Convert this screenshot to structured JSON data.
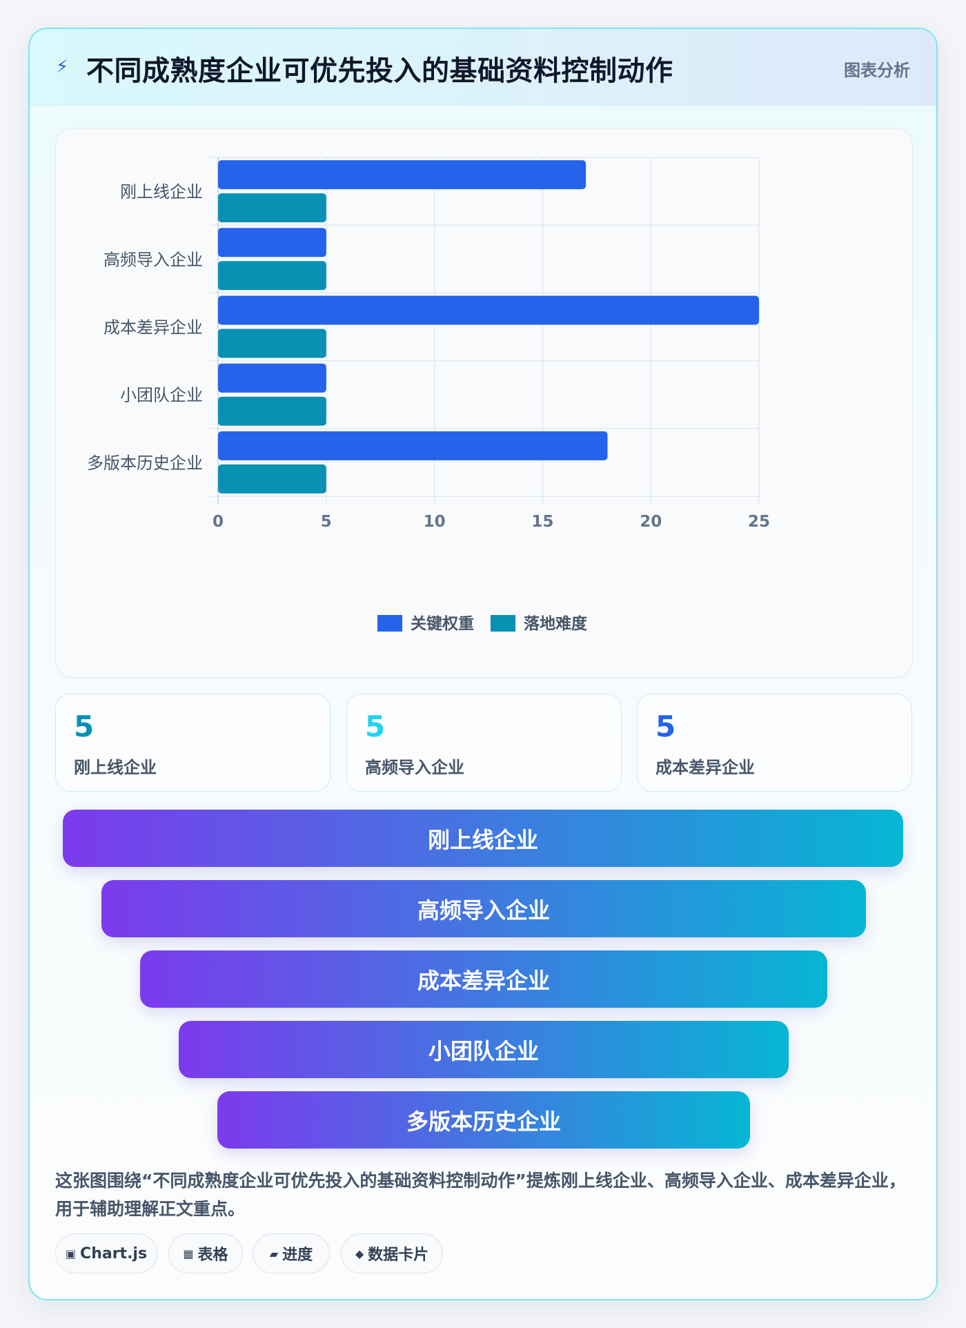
{
  "header": {
    "icon": "lightning-icon",
    "icon_glyph": "⚡",
    "title": "不同成熟度企业可优先投入的基础资料控制动作",
    "badge": "图表分析"
  },
  "chart_data": {
    "type": "bar",
    "orientation": "horizontal",
    "categories": [
      "刚上线企业",
      "高频导入企业",
      "成本差异企业",
      "小团队企业",
      "多版本历史企业"
    ],
    "series": [
      {
        "name": "关键权重",
        "values": [
          17,
          5,
          25,
          5,
          18
        ],
        "color": "#2563eb"
      },
      {
        "name": "落地难度",
        "values": [
          5,
          5,
          5,
          5,
          5
        ],
        "color": "#0891b2"
      }
    ],
    "xlim": [
      0,
      25
    ],
    "x_ticks": [
      0,
      5,
      10,
      15,
      20,
      25
    ],
    "grid": true,
    "legend_position": "bottom"
  },
  "stats": [
    {
      "value": "5",
      "label": "刚上线企业",
      "color": "#0891b2"
    },
    {
      "value": "5",
      "label": "高频导入企业",
      "color": "#22d3ee"
    },
    {
      "value": "5",
      "label": "成本差异企业",
      "color": "#2563eb"
    }
  ],
  "funnel": [
    "刚上线企业",
    "高频导入企业",
    "成本差异企业",
    "小团队企业",
    "多版本历史企业"
  ],
  "summary": "这张图围绕“不同成熟度企业可优先投入的基础资料控制动作”提炼刚上线企业、高频导入企业、成本差异企业，用于辅助理解正文重点。",
  "chips": [
    {
      "icon": "▣",
      "label": "Chart.js"
    },
    {
      "icon": "▦",
      "label": "表格"
    },
    {
      "icon": "▰",
      "label": "进度"
    },
    {
      "icon": "◆",
      "label": "数据卡片"
    }
  ]
}
